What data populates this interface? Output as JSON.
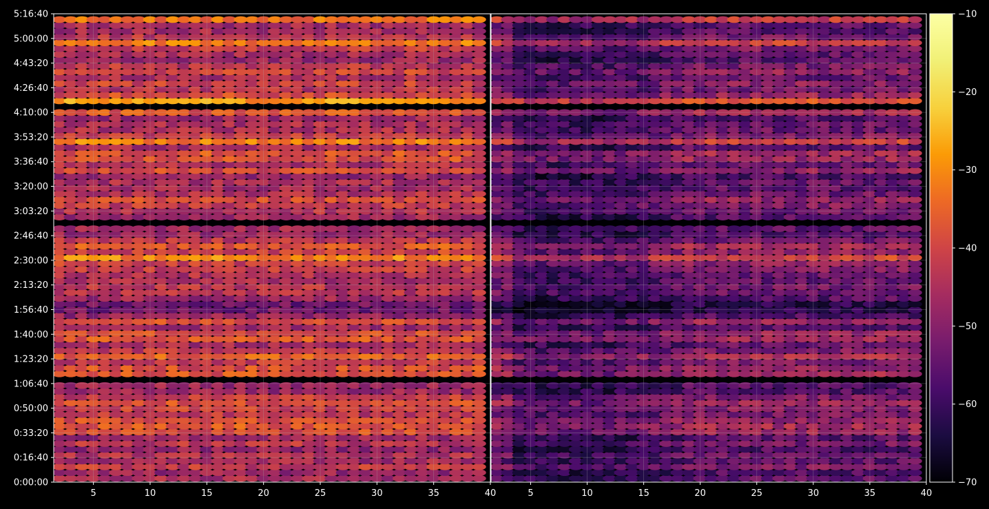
{
  "chart_data": {
    "type": "heatmap",
    "title": "",
    "xlabel": "",
    "ylabel": "",
    "panels": [
      {
        "name": "left",
        "xlim": [
          1.5,
          40
        ],
        "x_ticks": [
          5,
          10,
          15,
          20,
          25,
          30,
          35,
          40
        ],
        "x_tick_labels": [
          "5",
          "10",
          "15",
          "20",
          "25",
          "30",
          "35",
          "40"
        ],
        "x_bins": [
          2,
          39
        ],
        "intensity_offset": 0
      },
      {
        "name": "right",
        "xlim": [
          1.5,
          40
        ],
        "x_ticks": [
          5,
          10,
          15,
          20,
          25,
          30,
          35,
          40
        ],
        "x_tick_labels": [
          "5",
          "10",
          "15",
          "20",
          "25",
          "30",
          "35",
          "40"
        ],
        "x_bins": [
          2,
          39
        ],
        "intensity_offset": -9
      }
    ],
    "y_seconds_range": [
      0,
      19000
    ],
    "y_ticks_seconds": [
      0,
      1000,
      2000,
      3000,
      4000,
      5000,
      6000,
      7000,
      8000,
      9000,
      10000,
      11000,
      12000,
      13000,
      14000,
      15000,
      16000,
      17000,
      18000,
      19000
    ],
    "y_tick_labels": [
      "0:00:00",
      "0:16:40",
      "0:33:20",
      "0:50:00",
      "1:06:40",
      "1:23:20",
      "1:40:00",
      "1:56:40",
      "2:13:20",
      "2:30:00",
      "2:46:40",
      "3:03:20",
      "3:20:00",
      "3:36:40",
      "3:53:20",
      "4:10:00",
      "4:26:40",
      "4:43:20",
      "5:00:00",
      "5:16:40"
    ],
    "time_rows": 80,
    "gaps_seconds": [
      [
        500,
        600
      ],
      [
        2990,
        3100
      ],
      [
        4050,
        4180
      ],
      [
        5610,
        5720
      ],
      [
        10430,
        10520
      ],
      [
        11040,
        11180
      ],
      [
        15150,
        15270
      ],
      [
        16180,
        16310
      ]
    ],
    "strong_bands_seconds": [
      [
        200,
        350,
        0.55
      ],
      [
        2350,
        2500,
        0.95
      ],
      [
        2750,
        2900,
        0.45
      ],
      [
        4280,
        4350,
        0.65
      ],
      [
        4950,
        5150,
        0.8
      ],
      [
        5880,
        5950,
        0.5
      ],
      [
        8950,
        9150,
        0.7
      ],
      [
        9600,
        9750,
        0.9
      ],
      [
        11950,
        12150,
        0.75
      ],
      [
        12600,
        12750,
        0.45
      ],
      [
        13800,
        14000,
        0.5
      ],
      [
        15400,
        15650,
        0.7
      ],
      [
        16550,
        16700,
        0.55
      ],
      [
        17650,
        17900,
        0.6
      ],
      [
        18600,
        18800,
        0.55
      ]
    ],
    "weak_bands_seconds": [
      [
        6600,
        8300,
        -0.35
      ],
      [
        10900,
        11000,
        -0.3
      ]
    ],
    "seed": 42,
    "colorbar": {
      "colormap": "inferno",
      "range": [
        -70,
        -10
      ],
      "ticks": [
        -10,
        -20,
        -30,
        -40,
        -50,
        -60,
        -70
      ],
      "tick_labels": [
        "−10",
        "−20",
        "−30",
        "−40",
        "−50",
        "−60",
        "−70"
      ]
    },
    "grid": true,
    "legend": "none"
  },
  "colors": {
    "background": "#000000",
    "axes_edge": "#ffffff",
    "grid": "#b0b0b0",
    "text": "#ffffff"
  }
}
